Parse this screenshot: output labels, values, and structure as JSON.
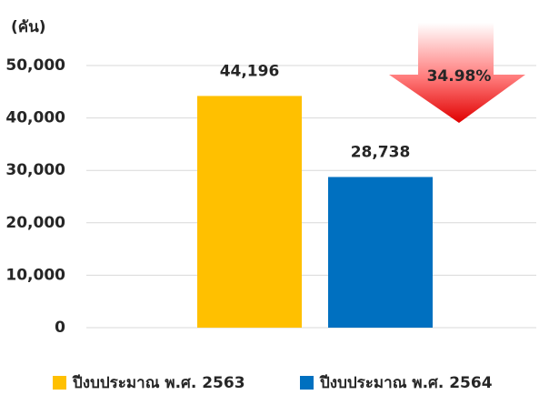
{
  "chart_data": {
    "type": "bar",
    "y_label": "(คัน)",
    "categories": [
      null
    ],
    "series": [
      {
        "name": "ปีงบประมาณ พ.ศ. 2563",
        "color": "#FFC000",
        "values": [
          44196
        ],
        "value_labels": [
          "44,196"
        ]
      },
      {
        "name": "ปีงบประมาณ พ.ศ. 2564",
        "color": "#0070C0",
        "values": [
          28738
        ],
        "value_labels": [
          "28,738"
        ]
      }
    ],
    "ylim": [
      0,
      50000
    ],
    "yticks": [
      0,
      {
        "value": 10000,
        "label": "10,000"
      },
      {
        "value": 20000,
        "label": "20,000"
      },
      {
        "value": 30000,
        "label": "30,000"
      },
      {
        "value": 40000,
        "label": "40,000"
      },
      {
        "value": 50000,
        "label": "50,000"
      }
    ],
    "grid": true,
    "annotation": "34.98%",
    "legend": "bottom"
  }
}
